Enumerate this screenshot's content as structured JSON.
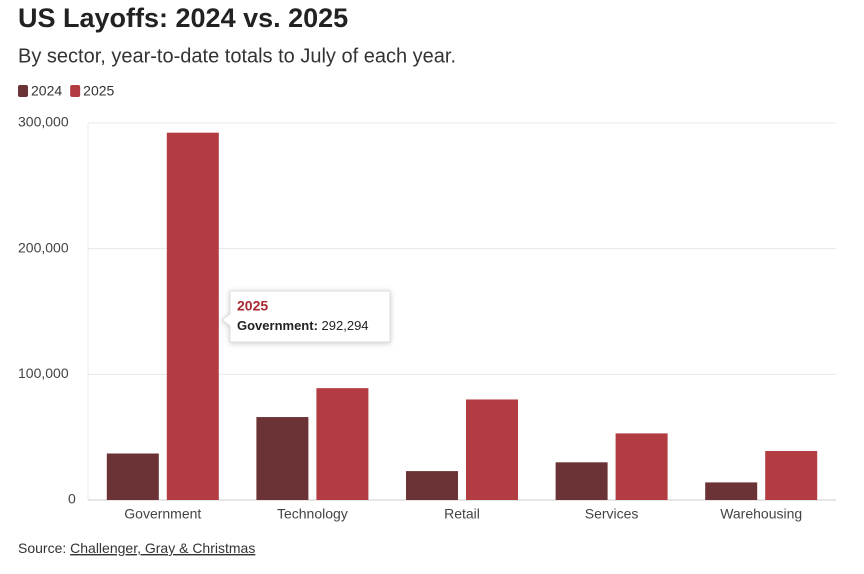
{
  "chart_data": {
    "type": "bar",
    "title": "US Layoffs: 2024 vs. 2025",
    "subtitle": "By sector, year-to-date totals to July of each year.",
    "categories": [
      "Government",
      "Technology",
      "Retail",
      "Services",
      "Warehousing"
    ],
    "series": [
      {
        "name": "2024",
        "color": "#6b3336",
        "values": [
          37000,
          66000,
          23000,
          30000,
          14000
        ]
      },
      {
        "name": "2025",
        "color": "#b33b42",
        "values": [
          292294,
          89000,
          80000,
          53000,
          39000
        ]
      }
    ],
    "ylim": [
      0,
      300000
    ],
    "yticks": [
      0,
      {
        "value": 100000,
        "label": "100,000"
      },
      {
        "value": 200000,
        "label": "200,000"
      },
      {
        "value": 300000,
        "label": "300,000"
      }
    ],
    "grid": true,
    "legend": "top-left",
    "tooltip": {
      "title": "2025",
      "label": "Government:",
      "value_label": "292,294"
    },
    "source": {
      "prefix": "Source:",
      "link": "Challenger, Gray & Christmas"
    }
  }
}
